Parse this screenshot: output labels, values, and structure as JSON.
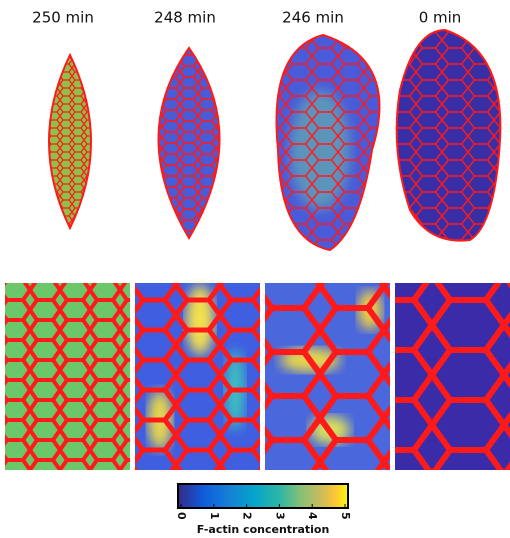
{
  "panels": [
    {
      "label": "250 min"
    },
    {
      "label": "248 min"
    },
    {
      "label": "246 min"
    },
    {
      "label": "0 min"
    }
  ],
  "colorbar": {
    "label": "F-actin concentration",
    "lim": [
      0,
      5
    ],
    "ticks": [
      0,
      1,
      2,
      3,
      4,
      5
    ]
  }
}
